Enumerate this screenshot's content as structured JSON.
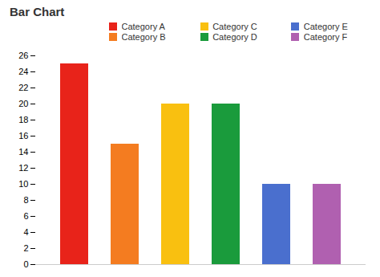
{
  "chart_data": {
    "type": "bar",
    "title": "Bar Chart",
    "categories": [
      "Category A",
      "Category B",
      "Category C",
      "Category D",
      "Category E",
      "Category F"
    ],
    "values": [
      25,
      15,
      20,
      20,
      10,
      10
    ],
    "colors": [
      "#e8231a",
      "#f47c20",
      "#f9c010",
      "#1a9b3c",
      "#4a6fce",
      "#b060b0"
    ],
    "ylim": [
      0,
      26
    ],
    "yticks": [
      0,
      2,
      4,
      6,
      8,
      10,
      12,
      14,
      16,
      18,
      20,
      22,
      24,
      26
    ],
    "grid": false,
    "legend": "upper right",
    "tick_labels": "y"
  }
}
